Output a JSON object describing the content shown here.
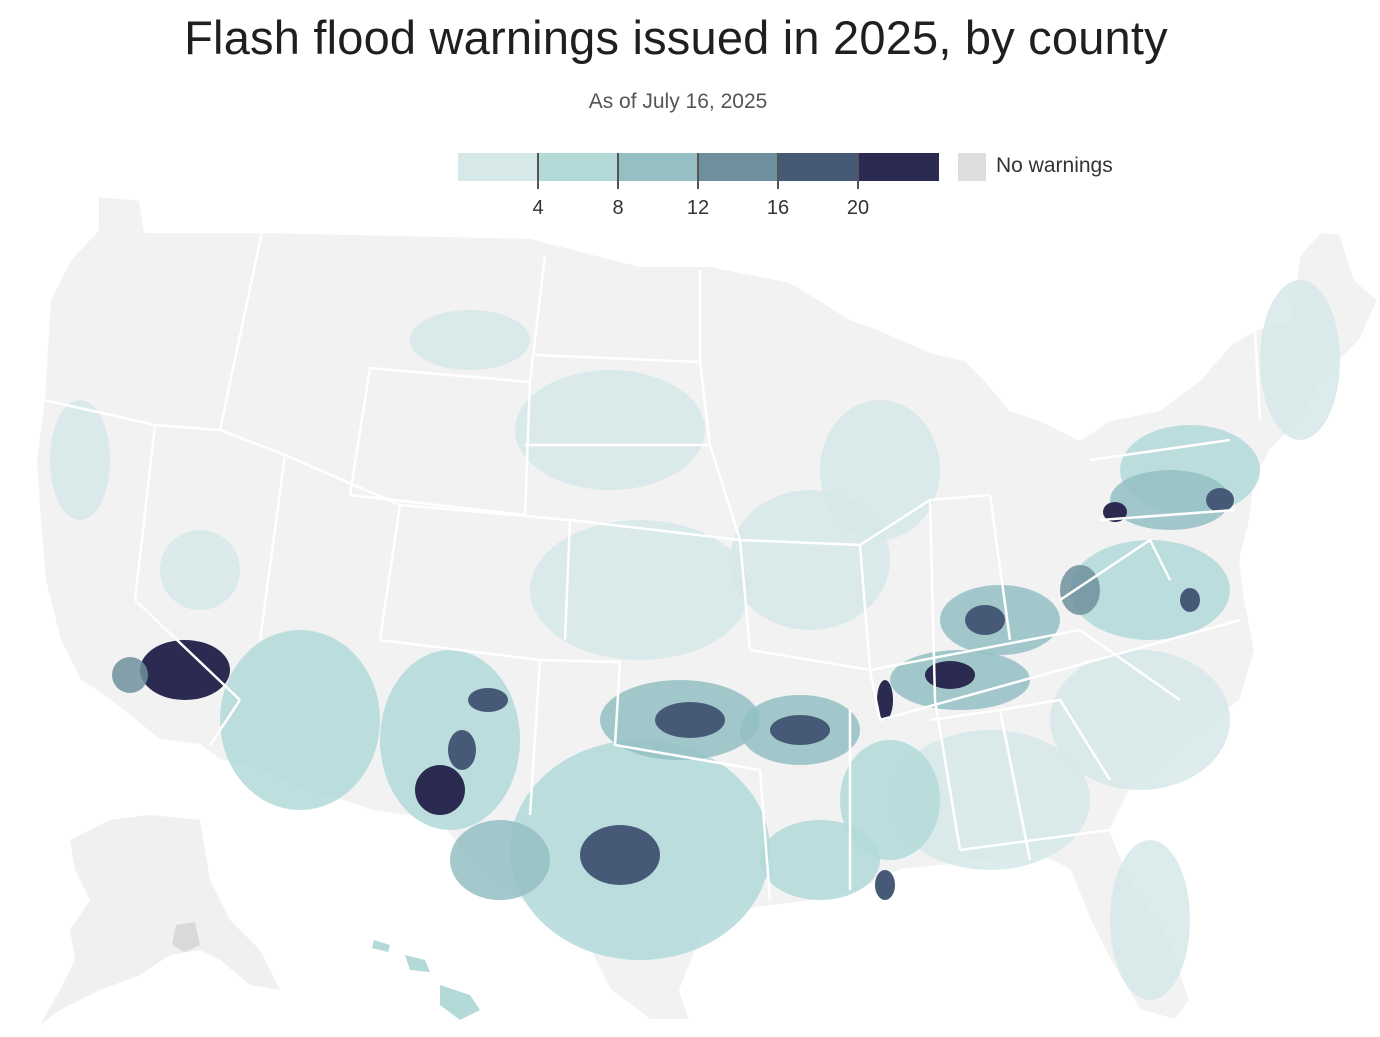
{
  "title": "Flash flood warnings issued in 2025, by county",
  "subtitle": "As of July 16, 2025",
  "legend": {
    "bins": [
      {
        "color": "#d6e8e8"
      },
      {
        "color": "#b3d9d9"
      },
      {
        "color": "#94c0c3"
      },
      {
        "color": "#6e909e"
      },
      {
        "color": "#465a78"
      },
      {
        "color": "#2b2a50"
      }
    ],
    "ticks": [
      "4",
      "8",
      "12",
      "16",
      "20"
    ],
    "no_warnings_label": "No warnings",
    "no_warnings_color": "#dddddd"
  },
  "map": {
    "land_color": "#f2f2f2",
    "border_color": "#ffffff"
  }
}
